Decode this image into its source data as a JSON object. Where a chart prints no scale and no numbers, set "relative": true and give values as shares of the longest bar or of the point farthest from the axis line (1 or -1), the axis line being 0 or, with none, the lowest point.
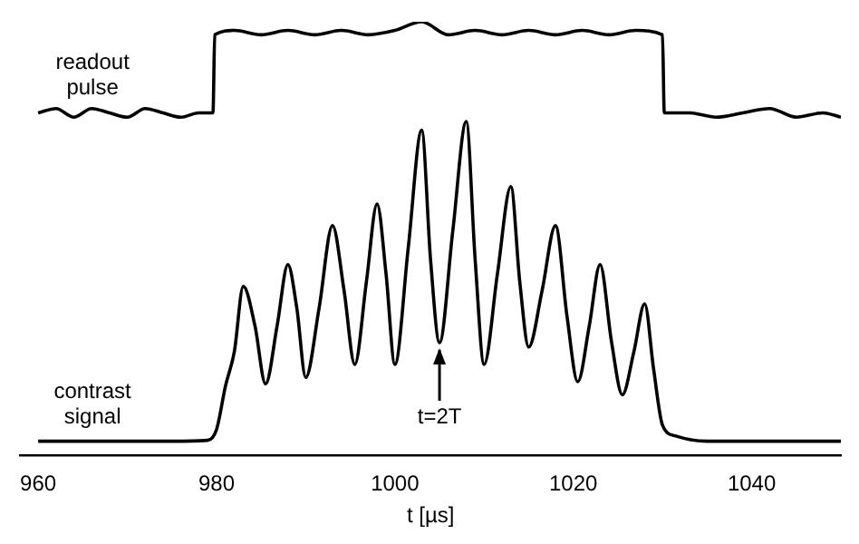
{
  "chart_data": {
    "type": "line",
    "relative": true,
    "xlabel": "t [µs]",
    "xlim": [
      958,
      1050
    ],
    "xticks": [
      960,
      980,
      1000,
      1020,
      1040
    ],
    "grid": false,
    "legend": false,
    "marker": "none",
    "line_style": "solid",
    "annotations": [
      {
        "text": "t=2T",
        "x": 1005,
        "y": 0.26
      }
    ],
    "series": [
      {
        "name": "readout pulse",
        "color": "#000000",
        "x": [
          960,
          962,
          964,
          966,
          968,
          970,
          972,
          974,
          976,
          978,
          979.6,
          979.8,
          982,
          985,
          988,
          991,
          994,
          997,
          1000,
          1003,
          1006,
          1009,
          1012,
          1015,
          1018,
          1021,
          1024,
          1027,
          1030,
          1030.2,
          1033,
          1036,
          1039,
          1042,
          1045,
          1048,
          1050
        ],
        "values": [
          0.79,
          0.8,
          0.78,
          0.8,
          0.79,
          0.78,
          0.8,
          0.79,
          0.78,
          0.79,
          0.79,
          0.97,
          0.98,
          0.97,
          0.98,
          0.97,
          0.98,
          0.97,
          0.98,
          1,
          0.97,
          0.98,
          0.97,
          0.98,
          0.97,
          0.98,
          0.97,
          0.98,
          0.97,
          0.79,
          0.79,
          0.78,
          0.79,
          0.8,
          0.78,
          0.79,
          0.78
        ]
      },
      {
        "name": "contrast signal",
        "color": "#000000",
        "x": [
          960,
          965,
          970,
          975,
          979,
          980,
          981,
          982,
          983,
          984.3,
          985.5,
          986.8,
          988,
          989,
          990,
          991.5,
          993,
          994.3,
          995.5,
          996.8,
          998,
          999,
          1000,
          1001.5,
          1003,
          1004,
          1005,
          1006.5,
          1008,
          1009,
          1010,
          1011.5,
          1013,
          1014,
          1015,
          1016.5,
          1018,
          1019.3,
          1020.5,
          1021.8,
          1023,
          1024.3,
          1025.5,
          1026.8,
          1028,
          1029,
          1030,
          1031.5,
          1035,
          1040,
          1045,
          1050
        ],
        "values": [
          0.033,
          0.033,
          0.033,
          0.033,
          0.035,
          0.06,
          0.16,
          0.24,
          0.39,
          0.3,
          0.165,
          0.3,
          0.44,
          0.34,
          0.18,
          0.34,
          0.53,
          0.38,
          0.21,
          0.4,
          0.58,
          0.42,
          0.21,
          0.48,
          0.75,
          0.45,
          0.26,
          0.52,
          0.77,
          0.45,
          0.21,
          0.42,
          0.62,
          0.4,
          0.25,
          0.38,
          0.53,
          0.32,
          0.17,
          0.3,
          0.44,
          0.26,
          0.14,
          0.24,
          0.35,
          0.2,
          0.07,
          0.045,
          0.033,
          0.033,
          0.033,
          0.033
        ]
      }
    ]
  }
}
